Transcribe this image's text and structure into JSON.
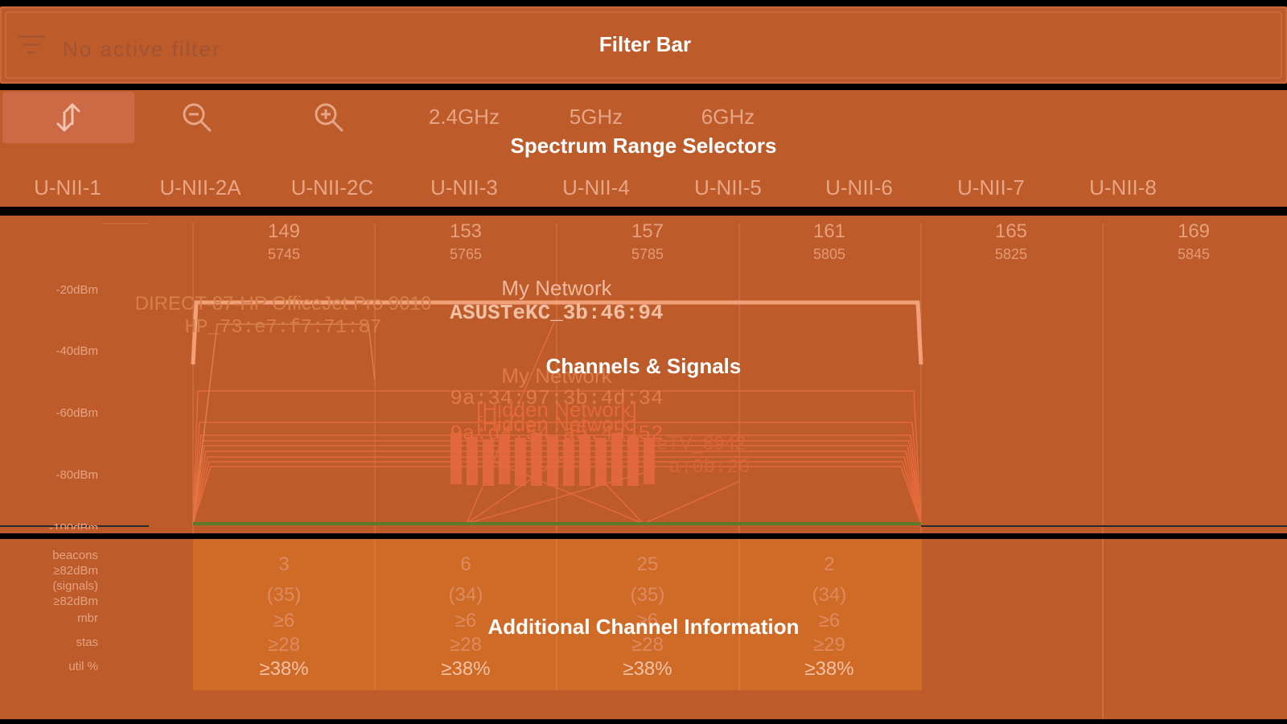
{
  "filter_bar": {
    "placeholder": "No active filter",
    "overlay_title": "Filter Bar",
    "icon": "filter-icon"
  },
  "range_selectors": {
    "overlay_title": "Spectrum Range Selectors",
    "tools": [
      {
        "icon": "swap-vertical-icon",
        "active": true
      },
      {
        "icon": "zoom-out-icon",
        "active": false
      },
      {
        "icon": "zoom-in-icon",
        "active": false
      }
    ],
    "bands": [
      "2.4GHz",
      "5GHz",
      "6GHz"
    ],
    "sub_bands": [
      "U-NII-1",
      "U-NII-2A",
      "U-NII-2C",
      "U-NII-3",
      "U-NII-4",
      "U-NII-5",
      "U-NII-6",
      "U-NII-7",
      "U-NII-8"
    ]
  },
  "chart": {
    "overlay_title": "Channels & Signals",
    "channels": [
      {
        "number": "149",
        "freq": "5745"
      },
      {
        "number": "153",
        "freq": "5765"
      },
      {
        "number": "157",
        "freq": "5785"
      },
      {
        "number": "161",
        "freq": "5805"
      },
      {
        "number": "165",
        "freq": "5825"
      },
      {
        "number": "169",
        "freq": "5845"
      }
    ],
    "y_labels": [
      "-20dBm",
      "-40dBm",
      "-60dBm",
      "-80dBm",
      "-100dBm"
    ],
    "networks": [
      {
        "ssid": "My Network",
        "bssid": "ASUSTeKC_3b:46:94"
      },
      {
        "ssid": "DIRECT-87-HP OfficeJet Pro 9010",
        "bssid": "HP_73:e7:f7:71:87"
      },
      {
        "ssid": "My Network",
        "bssid": "9a:34:97:3b:4d:34"
      },
      {
        "ssid": "[Hidden Network]",
        "bssid": ""
      },
      {
        "ssid": "[Hidden Network]",
        "bssid": ""
      },
      {
        "ssid": "",
        "bssid": "9a:d4:54:a5:4a:52"
      },
      {
        "ssid": "eTV_8942",
        "bssid": ""
      },
      {
        "ssid": "",
        "bssid": "a:0b:20"
      }
    ],
    "colors": {
      "panel": "#bd5b2b",
      "signal_strong": "#f2a07a",
      "signal_weak": "#ea6a3c",
      "baseline": "#5c7a2a"
    }
  },
  "info": {
    "overlay_title": "Additional Channel Information",
    "row_labels": [
      "beacons",
      "≥82dBm",
      "(signals)",
      "≥82dBm",
      "mbr",
      "stas",
      "util %"
    ],
    "columns": [
      {
        "beacons": "3",
        "signals": "(35)",
        "mbr": "≥6",
        "stas": "≥28",
        "util": "≥38%"
      },
      {
        "beacons": "6",
        "signals": "(34)",
        "mbr": "≥6",
        "stas": "≥28",
        "util": "≥38%"
      },
      {
        "beacons": "25",
        "signals": "(35)",
        "mbr": "≥6",
        "stas": "≥28",
        "util": "≥38%"
      },
      {
        "beacons": "2",
        "signals": "(34)",
        "mbr": "≥6",
        "stas": "≥29",
        "util": "≥38%"
      }
    ]
  }
}
